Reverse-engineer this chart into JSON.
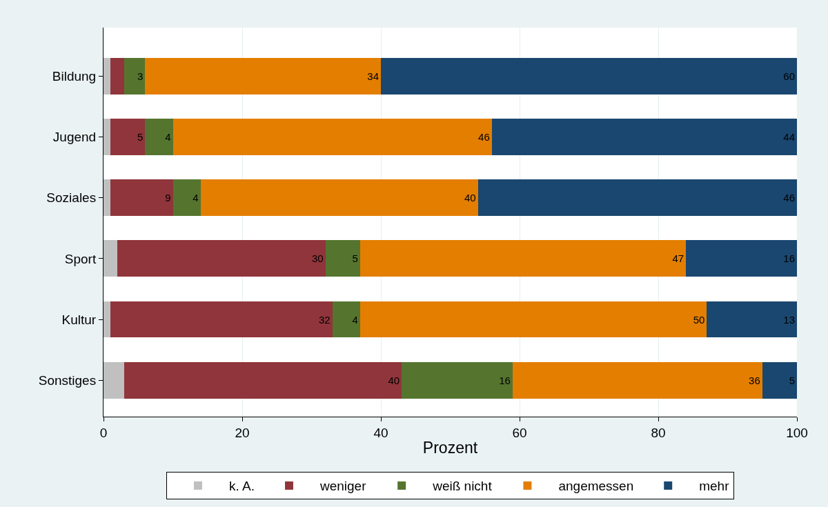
{
  "chart_data": {
    "type": "bar",
    "orientation": "horizontal",
    "stacked": true,
    "categories": [
      "Bildung",
      "Jugend",
      "Soziales",
      "Sport",
      "Kultur",
      "Sonstiges"
    ],
    "xlabel": "Prozent",
    "xlim": [
      0,
      100
    ],
    "xticks": [
      0,
      20,
      40,
      60,
      80,
      100
    ],
    "grid": "x",
    "legend": "bottom",
    "series": [
      {
        "name": "k. A.",
        "color": "#c0c0c0",
        "values": [
          1,
          1,
          1,
          2,
          1,
          3
        ],
        "value_labels": [
          null,
          null,
          null,
          null,
          null,
          null
        ]
      },
      {
        "name": "weniger",
        "color": "#90353b",
        "values": [
          2,
          5,
          9,
          30,
          32,
          40
        ],
        "value_labels": [
          null,
          "5",
          "9",
          "30",
          "32",
          "40"
        ]
      },
      {
        "name": "weiß nicht",
        "color": "#55752f",
        "values": [
          3,
          4,
          4,
          5,
          4,
          16
        ],
        "value_labels": [
          "3",
          "4",
          "4",
          "5",
          "4",
          "16"
        ]
      },
      {
        "name": "angemessen",
        "color": "#e37e00",
        "values": [
          34,
          46,
          40,
          47,
          50,
          36
        ],
        "value_labels": [
          "34",
          "46",
          "40",
          "47",
          "50",
          "36"
        ]
      },
      {
        "name": "mehr",
        "color": "#1a476f",
        "values": [
          60,
          44,
          46,
          16,
          13,
          5
        ],
        "value_labels": [
          "60",
          "44",
          "46",
          "16",
          "13",
          "5"
        ]
      }
    ]
  }
}
